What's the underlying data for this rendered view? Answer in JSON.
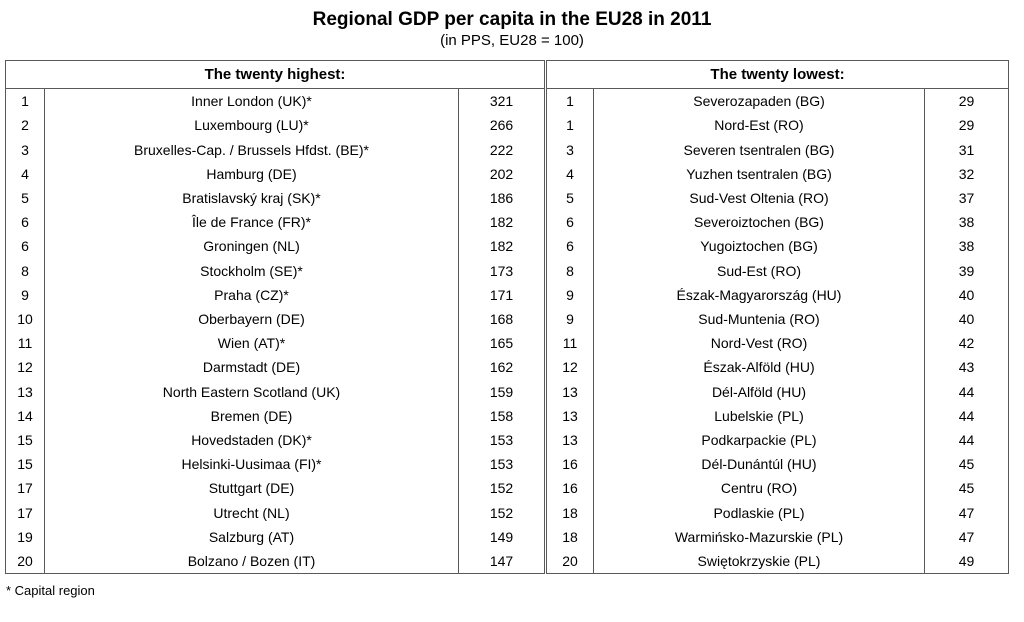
{
  "chart_data": {
    "type": "table",
    "title": "Regional GDP per capita in the EU28 in 2011",
    "subtitle": "(in PPS, EU28 = 100)",
    "footnote": "* Capital region",
    "unit": "index, EU28 = 100",
    "tables": [
      {
        "header": "The twenty highest:",
        "columns": [
          "rank",
          "region",
          "gdp_per_capita_pps"
        ],
        "rows": [
          [
            1,
            "Inner London (UK)*",
            321
          ],
          [
            2,
            "Luxembourg (LU)*",
            266
          ],
          [
            3,
            "Bruxelles-Cap. / Brussels Hfdst. (BE)*",
            222
          ],
          [
            4,
            "Hamburg (DE)",
            202
          ],
          [
            5,
            "Bratislavský kraj (SK)*",
            186
          ],
          [
            6,
            "Île de France (FR)*",
            182
          ],
          [
            6,
            "Groningen (NL)",
            182
          ],
          [
            8,
            "Stockholm (SE)*",
            173
          ],
          [
            9,
            "Praha (CZ)*",
            171
          ],
          [
            10,
            "Oberbayern (DE)",
            168
          ],
          [
            11,
            "Wien (AT)*",
            165
          ],
          [
            12,
            "Darmstadt (DE)",
            162
          ],
          [
            13,
            "North Eastern Scotland (UK)",
            159
          ],
          [
            14,
            "Bremen (DE)",
            158
          ],
          [
            15,
            "Hovedstaden (DK)*",
            153
          ],
          [
            15,
            "Helsinki-Uusimaa (FI)*",
            153
          ],
          [
            17,
            "Stuttgart (DE)",
            152
          ],
          [
            17,
            "Utrecht (NL)",
            152
          ],
          [
            19,
            "Salzburg (AT)",
            149
          ],
          [
            20,
            "Bolzano / Bozen (IT)",
            147
          ]
        ]
      },
      {
        "header": "The twenty lowest:",
        "columns": [
          "rank",
          "region",
          "gdp_per_capita_pps"
        ],
        "rows": [
          [
            1,
            "Severozapaden (BG)",
            29
          ],
          [
            1,
            "Nord-Est (RO)",
            29
          ],
          [
            3,
            "Severen tsentralen (BG)",
            31
          ],
          [
            4,
            "Yuzhen tsentralen (BG)",
            32
          ],
          [
            5,
            "Sud-Vest Oltenia (RO)",
            37
          ],
          [
            6,
            "Severoiztochen (BG)",
            38
          ],
          [
            6,
            "Yugoiztochen (BG)",
            38
          ],
          [
            8,
            "Sud-Est (RO)",
            39
          ],
          [
            9,
            "Észak-Magyarország (HU)",
            40
          ],
          [
            9,
            "Sud-Muntenia (RO)",
            40
          ],
          [
            11,
            "Nord-Vest (RO)",
            42
          ],
          [
            12,
            "Észak-Alföld (HU)",
            43
          ],
          [
            13,
            "Dél-Alföld (HU)",
            44
          ],
          [
            13,
            "Lubelskie (PL)",
            44
          ],
          [
            13,
            "Podkarpackie (PL)",
            44
          ],
          [
            16,
            "Dél-Dunántúl (HU)",
            45
          ],
          [
            16,
            "Centru (RO)",
            45
          ],
          [
            18,
            "Podlaskie (PL)",
            47
          ],
          [
            18,
            "Warmińsko-Mazurskie (PL)",
            47
          ],
          [
            20,
            "Swiętokrzyskie (PL)",
            49
          ]
        ]
      }
    ]
  }
}
